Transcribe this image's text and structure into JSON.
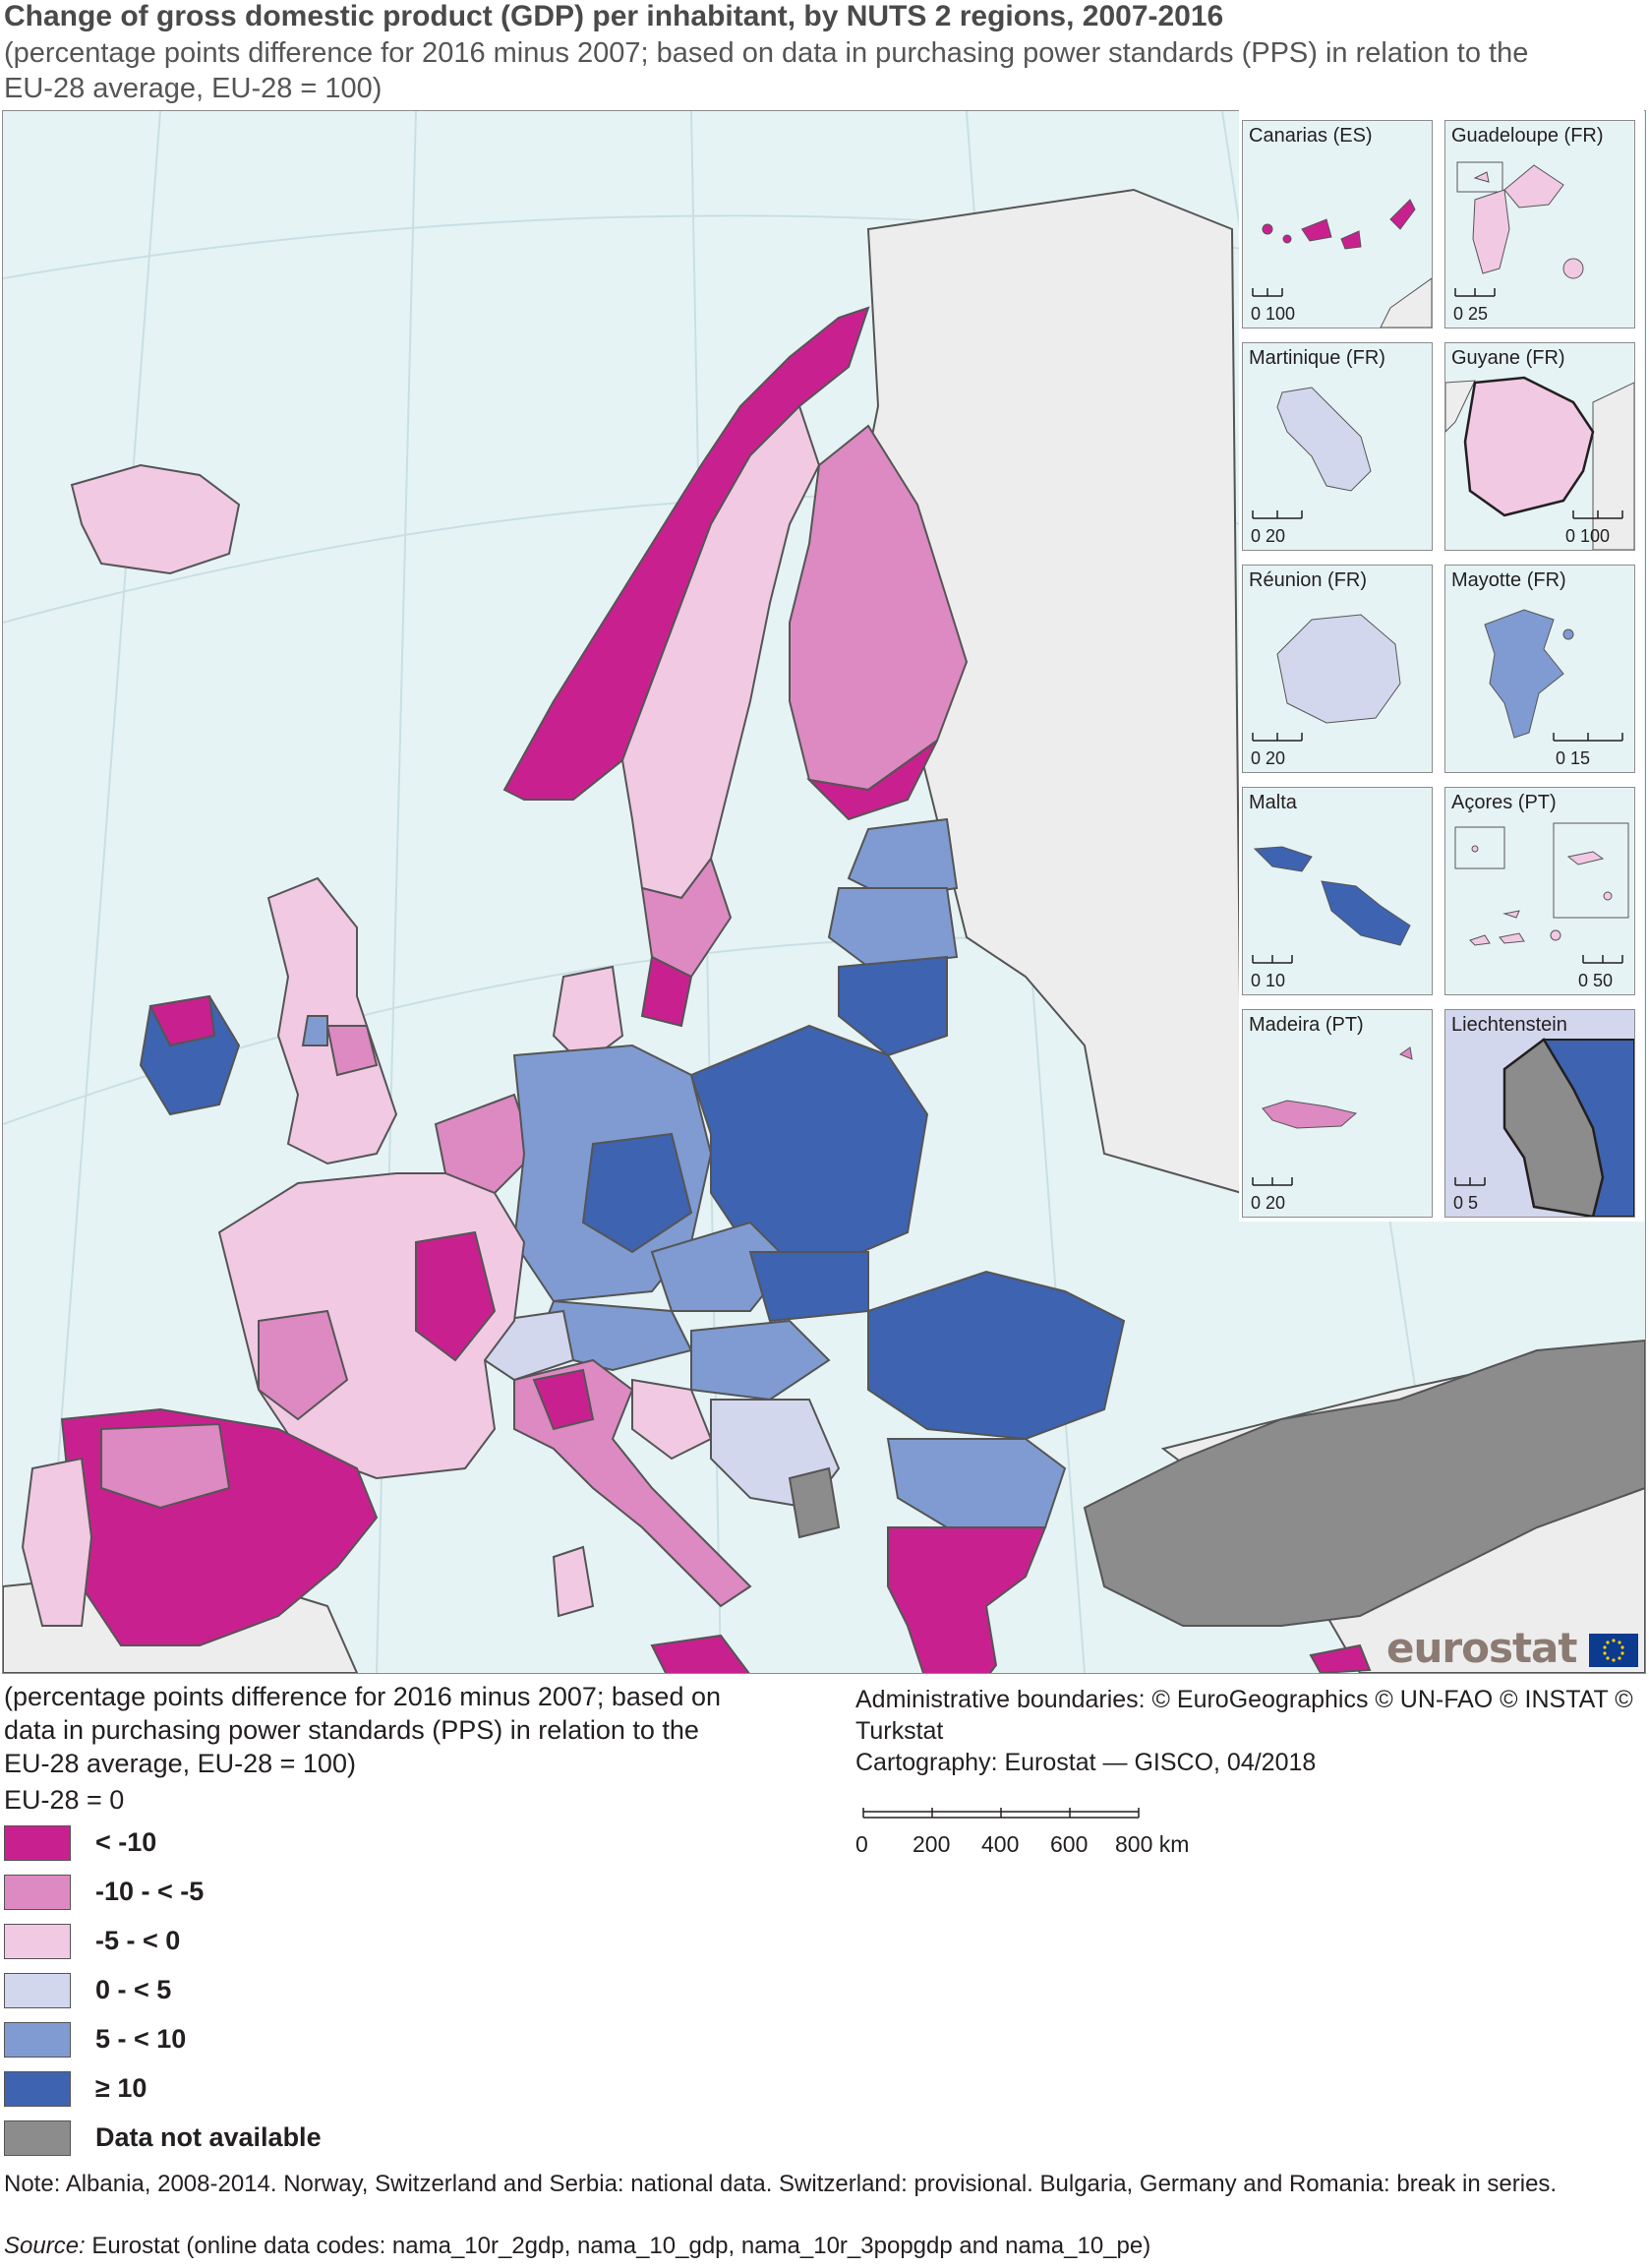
{
  "title": "Change of gross domestic product (GDP) per inhabitant, by NUTS 2 regions, 2007-2016",
  "subtitle": "(percentage points difference for 2016 minus 2007; based on data in purchasing power standards (PPS) in relation to the EU-28 average, EU-28 = 100)",
  "colors": {
    "sea": "#e6f3f5",
    "non_eu_land": "#ededed",
    "class_lt_m10": "#c8218f",
    "class_m10_m5": "#dd89c2",
    "class_m5_0": "#f1c9e3",
    "class_0_5": "#d3d7ed",
    "class_5_10": "#7f9bd1",
    "class_ge_10": "#3e63b0",
    "not_available": "#8c8c8c"
  },
  "insets": [
    {
      "name": "Canarias (ES)",
      "scale_label": "0  100"
    },
    {
      "name": "Guadeloupe (FR)",
      "scale_label": "0   25"
    },
    {
      "name": "Martinique (FR)",
      "scale_label": "0    20"
    },
    {
      "name": "Guyane (FR)",
      "scale_label": "0  100"
    },
    {
      "name": "Réunion (FR)",
      "scale_label": "0    20"
    },
    {
      "name": "Mayotte (FR)",
      "scale_label": "0    15"
    },
    {
      "name": "Malta",
      "scale_label": "0    10"
    },
    {
      "name": "Açores (PT)",
      "scale_label": "0   50"
    },
    {
      "name": "Madeira (PT)",
      "scale_label": "0    20"
    },
    {
      "name": "Liechtenstein",
      "scale_label": "0    5"
    }
  ],
  "logo_text": "eurostat",
  "legend": {
    "description": "(percentage points difference for 2016 minus 2007; based on data in purchasing power standards (PPS) in relation to the EU-28 average, EU-28 = 100)",
    "title": "EU-28 = 0",
    "items": [
      {
        "label": "< -10",
        "color": "#c8218f"
      },
      {
        "label": "-10 - < -5",
        "color": "#dd89c2"
      },
      {
        "label": "-5 - < 0",
        "color": "#f1c9e3"
      },
      {
        "label": "0 - < 5",
        "color": "#d3d7ed"
      },
      {
        "label": "5 - < 10",
        "color": "#7f9bd1"
      },
      {
        "label": "≥ 10",
        "color": "#3e63b0"
      },
      {
        "label": "Data not available",
        "color": "#8c8c8c"
      }
    ]
  },
  "credits": {
    "boundaries": "Administrative boundaries: © EuroGeographics © UN-FAO © INSTAT © Turkstat",
    "cartography": "Cartography: Eurostat — GISCO, 04/2018"
  },
  "scalebar": {
    "ticks": [
      "0",
      "200",
      "400",
      "600",
      "800 km"
    ]
  },
  "note": "Note: Albania, 2008-2014. Norway, Switzerland and Serbia: national data. Switzerland: provisional. Bulgaria, Germany and Romania: break in series.",
  "source": {
    "label": "Source:",
    "text": " Eurostat (online data codes: nama_10r_2gdp, nama_10_gdp, nama_10r_3popgdp and nama_10_pe)"
  }
}
